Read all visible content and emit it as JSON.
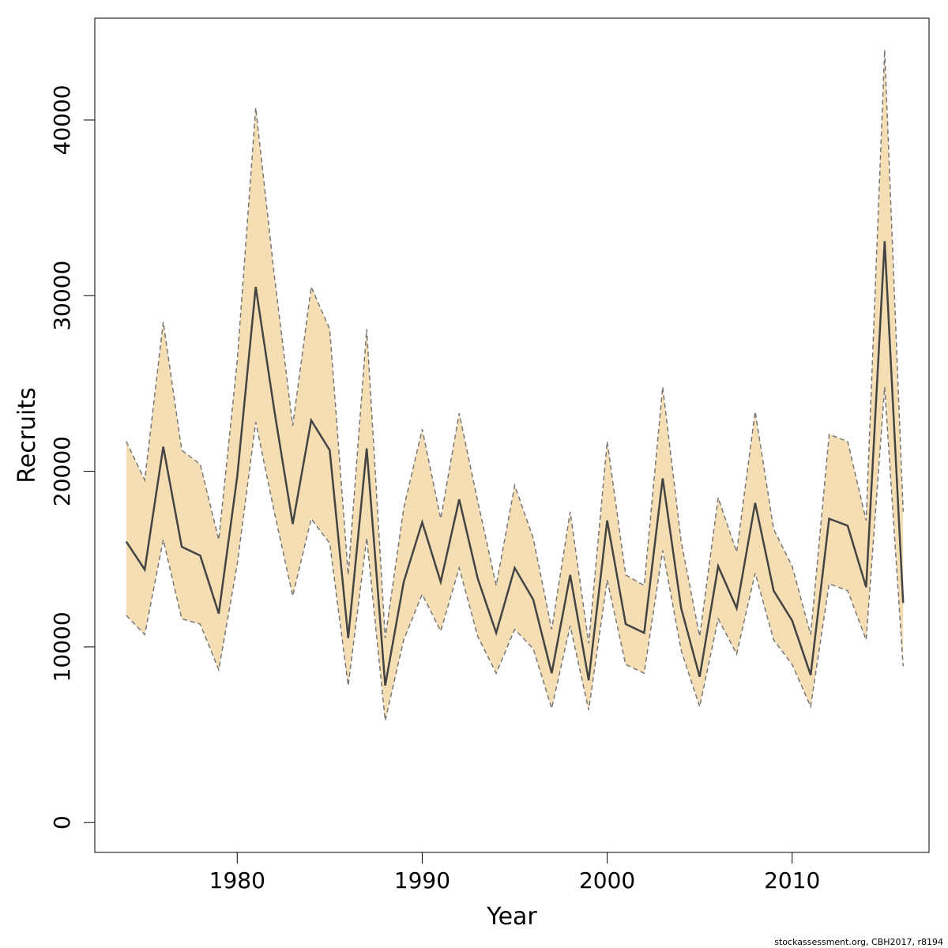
{
  "chart_data": {
    "type": "line",
    "xlabel": "Year",
    "ylabel": "Recruits",
    "xlim": [
      1972.3,
      2017.4
    ],
    "ylim": [
      -1700,
      45800
    ],
    "x_ticks": [
      1980,
      1990,
      2000,
      2010
    ],
    "x_tick_labels": [
      "1980",
      "1990",
      "2000",
      "2010"
    ],
    "y_ticks": [
      0,
      10000,
      20000,
      30000,
      40000
    ],
    "y_tick_labels": [
      "0",
      "10000",
      "20000",
      "30000",
      "40000"
    ],
    "grid": false,
    "band_color": "#f5deb3",
    "line_color": "#444444",
    "bound_color": "#777777",
    "x": [
      1974,
      1975,
      1976,
      1977,
      1978,
      1979,
      1980,
      1981,
      1982,
      1983,
      1984,
      1985,
      1986,
      1987,
      1988,
      1989,
      1990,
      1991,
      1992,
      1993,
      1994,
      1995,
      1996,
      1997,
      1998,
      1999,
      2000,
      2001,
      2002,
      2003,
      2004,
      2005,
      2006,
      2007,
      2008,
      2009,
      2010,
      2011,
      2012,
      2013,
      2014,
      2015,
      2016
    ],
    "series": [
      {
        "name": "",
        "role": "estimate",
        "values": [
          16000,
          14400,
          21400,
          15700,
          15200,
          11900,
          19700,
          30500,
          23500,
          17000,
          22900,
          21200,
          10500,
          21300,
          7800,
          13700,
          17100,
          13700,
          18400,
          13900,
          10800,
          14500,
          12700,
          8500,
          14100,
          8100,
          17200,
          11300,
          10800,
          19600,
          12200,
          8300,
          14600,
          12200,
          18200,
          13200,
          11500,
          8400,
          17300,
          16900,
          13400,
          33100,
          12500
        ]
      },
      {
        "name": "",
        "role": "upper",
        "values": [
          21700,
          19500,
          28500,
          21200,
          20400,
          16100,
          26300,
          40700,
          31200,
          22600,
          30500,
          28100,
          14100,
          28100,
          10500,
          17900,
          22400,
          17300,
          23300,
          18300,
          13500,
          19200,
          16200,
          11000,
          17700,
          10200,
          21700,
          14100,
          13500,
          24800,
          16000,
          10600,
          18500,
          15400,
          23400,
          16700,
          14600,
          10700,
          22100,
          21700,
          17200,
          44000,
          17700
        ]
      },
      {
        "name": "",
        "role": "lower",
        "values": [
          11800,
          10700,
          16100,
          11600,
          11300,
          8700,
          14700,
          22800,
          17700,
          12900,
          17300,
          15900,
          7800,
          16200,
          5800,
          10400,
          13000,
          10900,
          14500,
          10600,
          8500,
          11000,
          9900,
          6500,
          11200,
          6400,
          13800,
          9000,
          8500,
          15500,
          9800,
          6600,
          11600,
          9600,
          14200,
          10400,
          9000,
          6600,
          13600,
          13200,
          10400,
          24800,
          8900
        ]
      }
    ]
  },
  "credit": "stockassessment.org, CBH2017, r8194"
}
